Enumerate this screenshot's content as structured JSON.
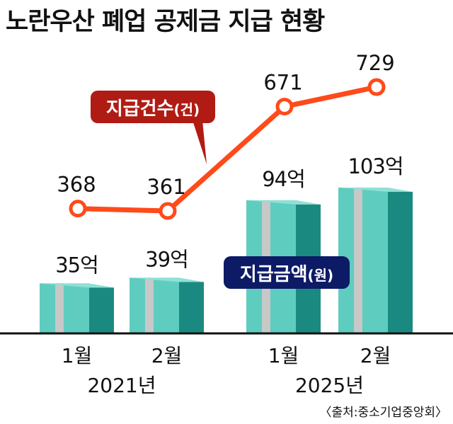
{
  "title": "노란우산 폐업 공제금 지급 현황",
  "source": "〈출처:중소기업중앙회〉",
  "chart_data": {
    "type": "bar+line",
    "categories": [
      "1월",
      "2월",
      "1월",
      "2월"
    ],
    "groups": [
      {
        "label": "2021년",
        "members": [
          0,
          1
        ]
      },
      {
        "label": "2025년",
        "members": [
          2,
          3
        ]
      }
    ],
    "series": [
      {
        "name": "지급금액",
        "unit": "(원)",
        "type": "bar",
        "values": [
          35,
          39,
          94,
          103
        ],
        "labels": [
          "35억",
          "39억",
          "94억",
          "103억"
        ]
      },
      {
        "name": "지급건수",
        "unit": "(건)",
        "type": "line",
        "values": [
          368,
          361,
          671,
          729
        ],
        "labels": [
          "368",
          "361",
          "671",
          "729"
        ]
      }
    ],
    "colors": {
      "bar_front": "#5ecdbf",
      "bar_side": "#1a8a80",
      "bar_stripe": "#c8c8c8",
      "line": "#ff4a1a",
      "count_badge": "#b01c14",
      "amount_badge": "#0d1a66"
    },
    "grid": false,
    "axes_visible": false
  }
}
